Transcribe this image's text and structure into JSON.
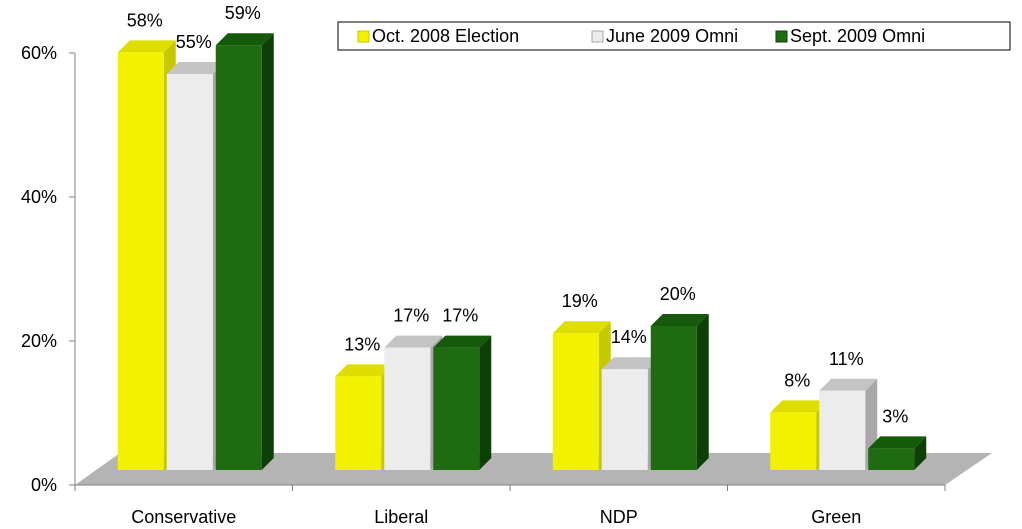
{
  "chart_data": {
    "type": "bar",
    "categories": [
      "Conservative",
      "Liberal",
      "NDP",
      "Green"
    ],
    "series": [
      {
        "name": "Oct. 2008 Election",
        "values": [
          58,
          13,
          19,
          8
        ],
        "color": "#f2f200",
        "side_color": "#c8c800",
        "top_color": "#dede00"
      },
      {
        "name": "June 2009 Omni",
        "values": [
          55,
          17,
          14,
          11
        ],
        "color": "#ececec",
        "side_color": "#a8a8a8",
        "top_color": "#c4c4c4"
      },
      {
        "name": "Sept. 2009 Omni",
        "values": [
          59,
          17,
          20,
          3
        ],
        "color": "#1f6b12",
        "side_color": "#0e3f06",
        "top_color": "#145a0a"
      }
    ],
    "data_labels": [
      [
        "58%",
        "13%",
        "19%",
        "8%"
      ],
      [
        "55%",
        "17%",
        "14%",
        "11%"
      ],
      [
        "59%",
        "17%",
        "20%",
        "3%"
      ]
    ],
    "y_ticks": [
      {
        "value": 0,
        "label": "0%"
      },
      {
        "value": 20,
        "label": "20%"
      },
      {
        "value": 40,
        "label": "40%"
      },
      {
        "value": 60,
        "label": "60%"
      }
    ],
    "ylim": [
      0,
      60
    ],
    "grid": false,
    "legend_position": "top-right",
    "floor_color": "#b4b4b4"
  }
}
